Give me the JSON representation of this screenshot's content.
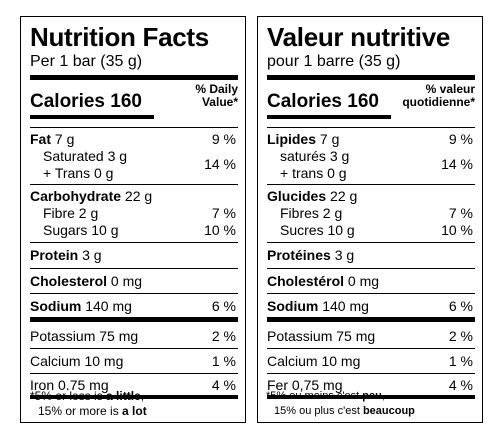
{
  "en": {
    "title": "Nutrition Facts",
    "serving": "Per 1 bar (35 g)",
    "calories_label": "Calories",
    "calories_value": "160",
    "dv_header": "% Daily\nValue*",
    "fat": {
      "label": "Fat",
      "amount": "7 g",
      "pct": "9 %"
    },
    "saturated": {
      "label": "Saturated",
      "amount": "3 g"
    },
    "trans": {
      "label": "+ Trans",
      "amount": "0 g"
    },
    "sat_trans_pct": "14 %",
    "carbohydrate": {
      "label": "Carbohydrate",
      "amount": "22 g"
    },
    "fibre": {
      "label": "Fibre",
      "amount": "2 g",
      "pct": "7 %"
    },
    "sugars": {
      "label": "Sugars",
      "amount": "10 g",
      "pct": "10 %"
    },
    "protein": {
      "label": "Protein",
      "amount": "3 g"
    },
    "cholesterol": {
      "label": "Cholesterol",
      "amount": "0 mg"
    },
    "sodium": {
      "label": "Sodium",
      "amount": "140 mg",
      "pct": "6 %"
    },
    "potassium": {
      "label": "Potassium",
      "amount": "75 mg",
      "pct": "2 %"
    },
    "calcium": {
      "label": "Calcium",
      "amount": "10 mg",
      "pct": "1 %"
    },
    "iron": {
      "label": "Iron",
      "amount": "0.75 mg",
      "pct": "4 %"
    },
    "footnote_1a": "*5% or less is ",
    "footnote_1b": "a little",
    "footnote_2a": "15% or more is ",
    "footnote_2b": "a lot"
  },
  "fr": {
    "title": "Valeur nutritive",
    "serving": "pour 1 barre (35 g)",
    "calories_label": "Calories",
    "calories_value": "160",
    "dv_header": "% valeur\nquotidienne*",
    "fat": {
      "label": "Lipides",
      "amount": "7 g",
      "pct": "9 %"
    },
    "saturated": {
      "label": "saturés",
      "amount": "3 g"
    },
    "trans": {
      "label": "+ trans",
      "amount": "0 g"
    },
    "sat_trans_pct": "14 %",
    "carbohydrate": {
      "label": "Glucides",
      "amount": "22 g"
    },
    "fibre": {
      "label": "Fibres",
      "amount": "2 g",
      "pct": "7 %"
    },
    "sugars": {
      "label": "Sucres",
      "amount": "10 g",
      "pct": "10 %"
    },
    "protein": {
      "label": "Protéines",
      "amount": "3 g"
    },
    "cholesterol": {
      "label": "Cholestérol",
      "amount": "0 mg"
    },
    "sodium": {
      "label": "Sodium",
      "amount": "140 mg",
      "pct": "6 %"
    },
    "potassium": {
      "label": "Potassium",
      "amount": "75 mg",
      "pct": "2 %"
    },
    "calcium": {
      "label": "Calcium",
      "amount": "10 mg",
      "pct": "1 %"
    },
    "iron": {
      "label": "Fer",
      "amount": "0,75 mg",
      "pct": "4 %"
    },
    "footnote_1a": "*5% ou moins c'est ",
    "footnote_1b": "peu",
    "footnote_2a": "15% ou plus c'est ",
    "footnote_2b": "beaucoup"
  }
}
